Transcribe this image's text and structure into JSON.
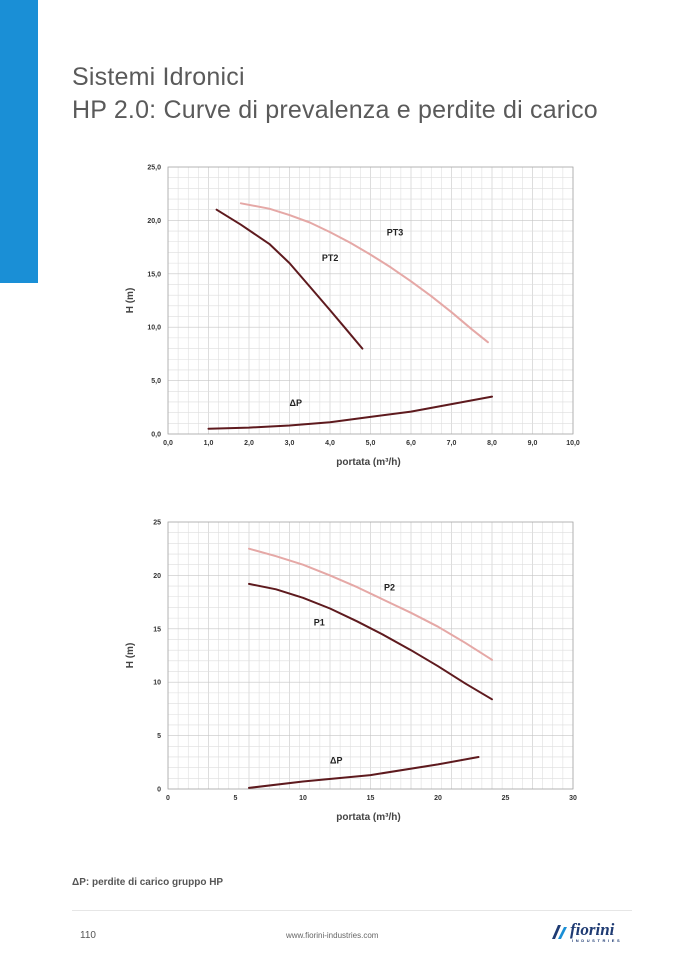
{
  "header": {
    "title": "Sistemi Idronici",
    "subtitle": "HP 2.0: Curve di prevalenza e perdite di carico"
  },
  "chart_data": [
    {
      "type": "line",
      "xlabel": "portata (m³/h)",
      "ylabel": "H (m)",
      "xlim": [
        0,
        10
      ],
      "ylim": [
        0,
        25
      ],
      "grid": true,
      "x_ticks": [
        "0,0",
        "1,0",
        "2,0",
        "3,0",
        "4,0",
        "5,0",
        "6,0",
        "7,0",
        "8,0",
        "9,0",
        "10,0"
      ],
      "y_ticks": [
        "0,0",
        "5,0",
        "10,0",
        "15,0",
        "20,0",
        "25,0"
      ],
      "series": [
        {
          "name": "PT2",
          "color": "#5e1a1e",
          "points": [
            [
              1.2,
              21.0
            ],
            [
              1.8,
              19.6
            ],
            [
              2.5,
              17.8
            ],
            [
              3.0,
              16.0
            ],
            [
              3.5,
              13.8
            ],
            [
              4.0,
              11.6
            ],
            [
              4.4,
              9.8
            ],
            [
              4.8,
              8.0
            ]
          ],
          "label_at": [
            3.8,
            16.2
          ]
        },
        {
          "name": "PT3",
          "color": "#e5a8a6",
          "points": [
            [
              1.8,
              21.6
            ],
            [
              2.5,
              21.1
            ],
            [
              3.0,
              20.5
            ],
            [
              3.5,
              19.8
            ],
            [
              4.0,
              18.9
            ],
            [
              4.5,
              17.9
            ],
            [
              5.0,
              16.8
            ],
            [
              5.5,
              15.6
            ],
            [
              6.0,
              14.3
            ],
            [
              6.5,
              12.9
            ],
            [
              7.0,
              11.4
            ],
            [
              7.5,
              9.8
            ],
            [
              7.9,
              8.6
            ]
          ],
          "label_at": [
            5.4,
            18.6
          ]
        },
        {
          "name": "ΔP",
          "color": "#5e1a1e",
          "points": [
            [
              1.0,
              0.5
            ],
            [
              2.0,
              0.6
            ],
            [
              3.0,
              0.8
            ],
            [
              4.0,
              1.1
            ],
            [
              5.0,
              1.6
            ],
            [
              6.0,
              2.1
            ],
            [
              7.0,
              2.8
            ],
            [
              8.0,
              3.5
            ]
          ],
          "label_at": [
            3.0,
            2.6
          ]
        }
      ]
    },
    {
      "type": "line",
      "xlabel": "portata (m³/h)",
      "ylabel": "H (m)",
      "xlim": [
        0,
        30
      ],
      "ylim": [
        0,
        25
      ],
      "grid": true,
      "x_ticks": [
        "0",
        "5",
        "10",
        "15",
        "20",
        "25",
        "30"
      ],
      "y_ticks": [
        "0",
        "5",
        "10",
        "15",
        "20",
        "25"
      ],
      "series": [
        {
          "name": "P1",
          "color": "#5e1a1e",
          "points": [
            [
              6,
              19.2
            ],
            [
              8,
              18.7
            ],
            [
              10,
              17.9
            ],
            [
              12,
              16.9
            ],
            [
              14,
              15.7
            ],
            [
              16,
              14.4
            ],
            [
              18,
              13.0
            ],
            [
              20,
              11.5
            ],
            [
              22,
              9.9
            ],
            [
              24,
              8.4
            ]
          ],
          "label_at": [
            10.8,
            15.3
          ]
        },
        {
          "name": "P2",
          "color": "#e5a8a6",
          "points": [
            [
              6,
              22.5
            ],
            [
              8,
              21.8
            ],
            [
              10,
              21.0
            ],
            [
              12,
              20.0
            ],
            [
              14,
              18.9
            ],
            [
              16,
              17.7
            ],
            [
              18,
              16.5
            ],
            [
              20,
              15.2
            ],
            [
              22,
              13.7
            ],
            [
              24,
              12.1
            ]
          ],
          "label_at": [
            16.0,
            18.6
          ]
        },
        {
          "name": "ΔP",
          "color": "#5e1a1e",
          "points": [
            [
              6,
              0.1
            ],
            [
              10,
              0.7
            ],
            [
              15,
              1.3
            ],
            [
              20,
              2.3
            ],
            [
              23,
              3.0
            ]
          ],
          "label_at": [
            12.0,
            2.4
          ]
        }
      ]
    }
  ],
  "footnote": "ΔP: perdite di carico gruppo HP",
  "footer": {
    "page_number": "110",
    "website": "www.fiorini-industries.com",
    "logo_text": "fiorini",
    "logo_subtext": "INDUSTRIES"
  }
}
